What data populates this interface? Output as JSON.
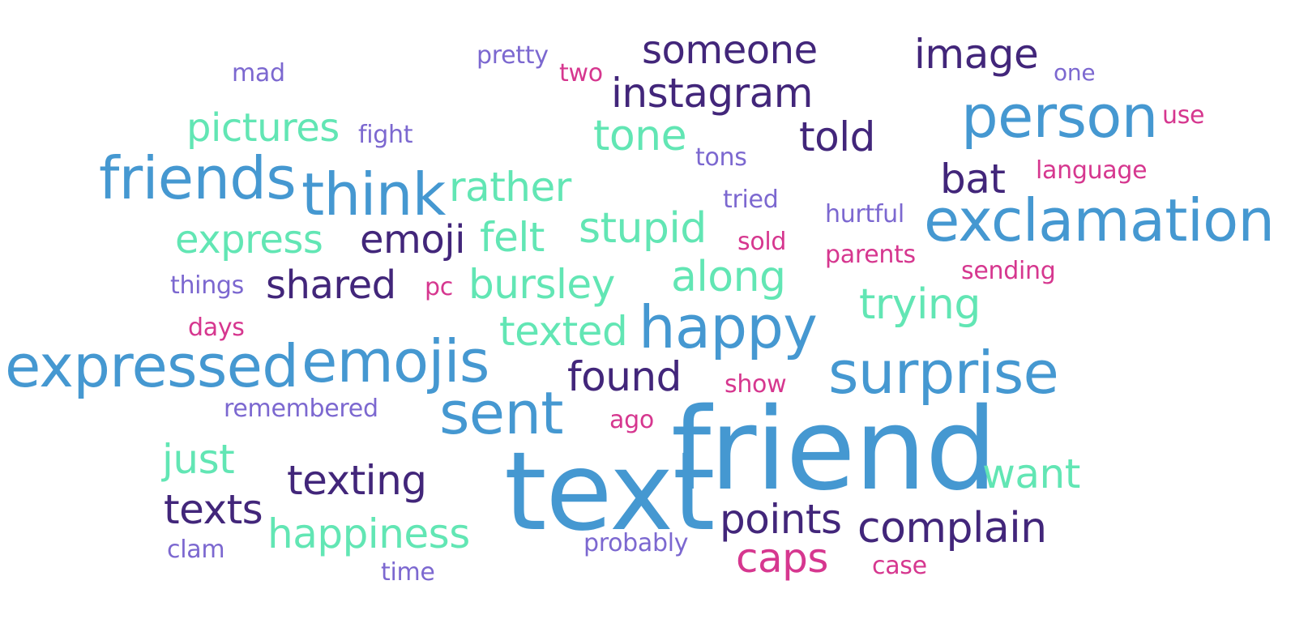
{
  "palette": {
    "blue": "#4598d1",
    "mint": "#62e6b4",
    "navy": "#42267a",
    "lavender": "#7c68d0",
    "magenta": "#d6378f"
  },
  "words": [
    {
      "text": "friend",
      "color": "blue",
      "weight": 100
    },
    {
      "text": "text",
      "color": "blue",
      "weight": 96
    },
    {
      "text": "exclamation",
      "color": "blue",
      "weight": 58
    },
    {
      "text": "expressed",
      "color": "blue",
      "weight": 60
    },
    {
      "text": "friends",
      "color": "blue",
      "weight": 58
    },
    {
      "text": "think",
      "color": "blue",
      "weight": 58
    },
    {
      "text": "person",
      "color": "blue",
      "weight": 58
    },
    {
      "text": "surprise",
      "color": "blue",
      "weight": 58
    },
    {
      "text": "happy",
      "color": "blue",
      "weight": 58
    },
    {
      "text": "emojis",
      "color": "blue",
      "weight": 58
    },
    {
      "text": "sent",
      "color": "blue",
      "weight": 58
    },
    {
      "text": "someone",
      "color": "navy",
      "weight": 44
    },
    {
      "text": "image",
      "color": "navy",
      "weight": 44
    },
    {
      "text": "instagram",
      "color": "navy",
      "weight": 44
    },
    {
      "text": "told",
      "color": "navy",
      "weight": 44
    },
    {
      "text": "bat",
      "color": "navy",
      "weight": 44
    },
    {
      "text": "emoji",
      "color": "navy",
      "weight": 44
    },
    {
      "text": "shared",
      "color": "navy",
      "weight": 44
    },
    {
      "text": "found",
      "color": "navy",
      "weight": 44
    },
    {
      "text": "texting",
      "color": "navy",
      "weight": 44
    },
    {
      "text": "texts",
      "color": "navy",
      "weight": 44
    },
    {
      "text": "points",
      "color": "navy",
      "weight": 44
    },
    {
      "text": "complain",
      "color": "navy",
      "weight": 44
    },
    {
      "text": "pictures",
      "color": "mint",
      "weight": 44
    },
    {
      "text": "tone",
      "color": "mint",
      "weight": 44
    },
    {
      "text": "rather",
      "color": "mint",
      "weight": 44
    },
    {
      "text": "express",
      "color": "mint",
      "weight": 44
    },
    {
      "text": "felt",
      "color": "mint",
      "weight": 44
    },
    {
      "text": "stupid",
      "color": "mint",
      "weight": 44
    },
    {
      "text": "along",
      "color": "mint",
      "weight": 44
    },
    {
      "text": "bursley",
      "color": "mint",
      "weight": 44
    },
    {
      "text": "trying",
      "color": "mint",
      "weight": 44
    },
    {
      "text": "texted",
      "color": "mint",
      "weight": 44
    },
    {
      "text": "just",
      "color": "mint",
      "weight": 44
    },
    {
      "text": "want",
      "color": "mint",
      "weight": 44
    },
    {
      "text": "happiness",
      "color": "mint",
      "weight": 44
    },
    {
      "text": "caps",
      "color": "magenta",
      "weight": 44
    },
    {
      "text": "pretty",
      "color": "lavender",
      "weight": 30
    },
    {
      "text": "mad",
      "color": "lavender",
      "weight": 30
    },
    {
      "text": "one",
      "color": "lavender",
      "weight": 30
    },
    {
      "text": "fight",
      "color": "lavender",
      "weight": 30
    },
    {
      "text": "tons",
      "color": "lavender",
      "weight": 30
    },
    {
      "text": "tried",
      "color": "lavender",
      "weight": 30
    },
    {
      "text": "hurtful",
      "color": "lavender",
      "weight": 30
    },
    {
      "text": "things",
      "color": "lavender",
      "weight": 30
    },
    {
      "text": "remembered",
      "color": "lavender",
      "weight": 30
    },
    {
      "text": "clam",
      "color": "lavender",
      "weight": 30
    },
    {
      "text": "probably",
      "color": "lavender",
      "weight": 30
    },
    {
      "text": "time",
      "color": "lavender",
      "weight": 30
    },
    {
      "text": "two",
      "color": "magenta",
      "weight": 30
    },
    {
      "text": "use",
      "color": "magenta",
      "weight": 30
    },
    {
      "text": "language",
      "color": "magenta",
      "weight": 30
    },
    {
      "text": "sold",
      "color": "magenta",
      "weight": 30
    },
    {
      "text": "parents",
      "color": "magenta",
      "weight": 30
    },
    {
      "text": "sending",
      "color": "magenta",
      "weight": 30
    },
    {
      "text": "pc",
      "color": "magenta",
      "weight": 30
    },
    {
      "text": "days",
      "color": "magenta",
      "weight": 30
    },
    {
      "text": "show",
      "color": "magenta",
      "weight": 30
    },
    {
      "text": "ago",
      "color": "magenta",
      "weight": 30
    },
    {
      "text": "case",
      "color": "magenta",
      "weight": 30
    }
  ]
}
